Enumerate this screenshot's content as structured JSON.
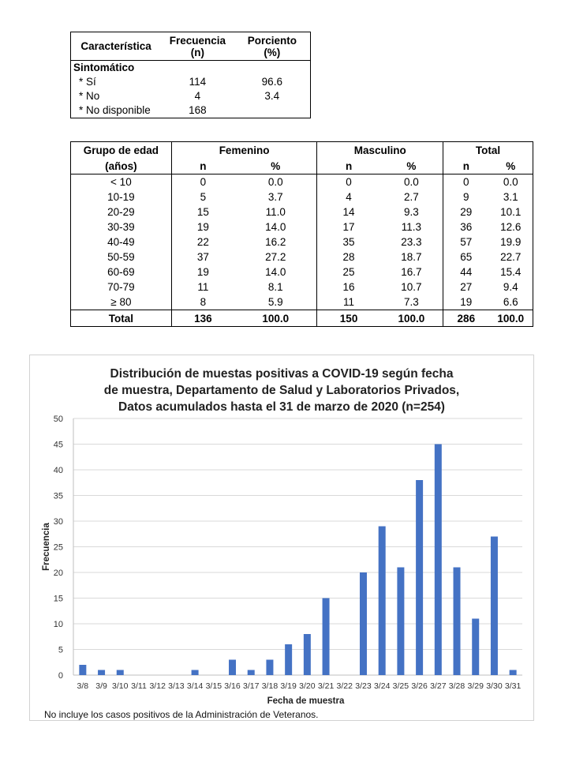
{
  "symptoms_table": {
    "headers": {
      "col1": "Característica",
      "col2_line1": "Frecuencia",
      "col2_line2": "(n)",
      "col3_line1": "Porciento",
      "col3_line2": "(%)"
    },
    "section_label": "Sintomático",
    "rows": [
      {
        "label": "* Sí",
        "n": "114",
        "pct": "96.6"
      },
      {
        "label": "* No",
        "n": "4",
        "pct": "3.4"
      },
      {
        "label": "* No disponible",
        "n": "168",
        "pct": ""
      }
    ]
  },
  "age_table": {
    "headers": {
      "group_line1": "Grupo de edad",
      "group_line2": "(años)",
      "female": "Femenino",
      "male": "Masculino",
      "total": "Total",
      "n": "n",
      "pct": "%"
    },
    "rows": [
      {
        "group": "< 10",
        "f_n": "0",
        "f_pct": "0.0",
        "m_n": "0",
        "m_pct": "0.0",
        "t_n": "0",
        "t_pct": "0.0"
      },
      {
        "group": "10-19",
        "f_n": "5",
        "f_pct": "3.7",
        "m_n": "4",
        "m_pct": "2.7",
        "t_n": "9",
        "t_pct": "3.1"
      },
      {
        "group": "20-29",
        "f_n": "15",
        "f_pct": "11.0",
        "m_n": "14",
        "m_pct": "9.3",
        "t_n": "29",
        "t_pct": "10.1"
      },
      {
        "group": "30-39",
        "f_n": "19",
        "f_pct": "14.0",
        "m_n": "17",
        "m_pct": "11.3",
        "t_n": "36",
        "t_pct": "12.6"
      },
      {
        "group": "40-49",
        "f_n": "22",
        "f_pct": "16.2",
        "m_n": "35",
        "m_pct": "23.3",
        "t_n": "57",
        "t_pct": "19.9"
      },
      {
        "group": "50-59",
        "f_n": "37",
        "f_pct": "27.2",
        "m_n": "28",
        "m_pct": "18.7",
        "t_n": "65",
        "t_pct": "22.7"
      },
      {
        "group": "60-69",
        "f_n": "19",
        "f_pct": "14.0",
        "m_n": "25",
        "m_pct": "16.7",
        "t_n": "44",
        "t_pct": "15.4"
      },
      {
        "group": "70-79",
        "f_n": "11",
        "f_pct": "8.1",
        "m_n": "16",
        "m_pct": "10.7",
        "t_n": "27",
        "t_pct": "9.4"
      },
      {
        "group": "≥ 80",
        "f_n": "8",
        "f_pct": "5.9",
        "m_n": "11",
        "m_pct": "7.3",
        "t_n": "19",
        "t_pct": "6.6"
      }
    ],
    "total": {
      "label": "Total",
      "f_n": "136",
      "f_pct": "100.0",
      "m_n": "150",
      "m_pct": "100.0",
      "t_n": "286",
      "t_pct": "100.0"
    }
  },
  "chart_data": {
    "type": "bar",
    "title_lines": [
      "Distribución de muestas positivas a COVID-19 según fecha",
      "de muestra, Departamento de Salud y Laboratorios Privados,",
      "Datos acumulados hasta el 31 de marzo de 2020 (n=254)"
    ],
    "xlabel": "Fecha de muestra",
    "ylabel": "Frecuencia",
    "ylim": [
      0,
      50
    ],
    "yticks": [
      0,
      5,
      10,
      15,
      20,
      25,
      30,
      35,
      40,
      45,
      50
    ],
    "grid": true,
    "bar_color": "#4472c4",
    "grid_color": "#d9d9d9",
    "categories": [
      "3/8",
      "3/9",
      "3/10",
      "3/11",
      "3/12",
      "3/13",
      "3/14",
      "3/15",
      "3/16",
      "3/17",
      "3/18",
      "3/19",
      "3/20",
      "3/21",
      "3/22",
      "3/23",
      "3/24",
      "3/25",
      "3/26",
      "3/27",
      "3/28",
      "3/29",
      "3/30",
      "3/31"
    ],
    "values": [
      2,
      1,
      1,
      0,
      0,
      0,
      1,
      0,
      3,
      1,
      3,
      6,
      8,
      15,
      0,
      20,
      29,
      21,
      38,
      45,
      21,
      11,
      27,
      1
    ]
  },
  "footnote": "No incluye los casos positivos de la Administración de Veteranos."
}
